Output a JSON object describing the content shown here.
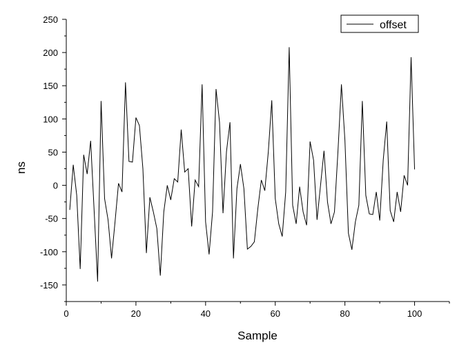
{
  "chart_data": {
    "type": "line",
    "title": "",
    "xlabel": "Sample",
    "ylabel": "ns",
    "xlim": [
      0,
      110
    ],
    "ylim": [
      -175,
      250
    ],
    "x_ticks": [
      0,
      20,
      40,
      60,
      80,
      100
    ],
    "y_ticks": [
      -150,
      -100,
      -50,
      0,
      50,
      100,
      150,
      200,
      250
    ],
    "x_tick_labels": [
      "0",
      "20",
      "40",
      "60",
      "80",
      "100"
    ],
    "y_tick_labels": [
      "-150",
      "-100",
      "-50",
      "0",
      "50",
      "100",
      "150",
      "200",
      "250"
    ],
    "grid": false,
    "legend_position": "top-right",
    "series": [
      {
        "name": "offset",
        "color": "#000000",
        "x": [
          1,
          2,
          3,
          4,
          5,
          6,
          7,
          8,
          9,
          10,
          11,
          12,
          13,
          14,
          15,
          16,
          17,
          18,
          19,
          20,
          21,
          22,
          23,
          24,
          25,
          26,
          27,
          28,
          29,
          30,
          31,
          32,
          33,
          34,
          35,
          36,
          37,
          38,
          39,
          40,
          41,
          42,
          43,
          44,
          45,
          46,
          47,
          48,
          49,
          50,
          51,
          52,
          53,
          54,
          55,
          56,
          57,
          58,
          59,
          60,
          61,
          62,
          63,
          64,
          65,
          66,
          67,
          68,
          69,
          70,
          71,
          72,
          73,
          74,
          75,
          76,
          77,
          78,
          79,
          80,
          81,
          82,
          83,
          84,
          85,
          86,
          87,
          88,
          89,
          90,
          91,
          92,
          93,
          94,
          95,
          96,
          97,
          98,
          99,
          100
        ],
        "values": [
          -37,
          31,
          -15,
          -126,
          46,
          17,
          67,
          -38,
          -145,
          127,
          -20,
          -52,
          -110,
          -55,
          3,
          -10,
          155,
          36,
          35,
          102,
          90,
          25,
          -102,
          -18,
          -40,
          -65,
          -136,
          -40,
          0,
          -22,
          10,
          5,
          84,
          20,
          25,
          -62,
          8,
          -2,
          152,
          -55,
          -104,
          -40,
          145,
          95,
          -42,
          51,
          95,
          -110,
          -5,
          32,
          -5,
          -96,
          -92,
          -85,
          -35,
          8,
          -8,
          50,
          128,
          -20,
          -58,
          -77,
          -10,
          208,
          -30,
          -58,
          -2,
          -40,
          -60,
          66,
          38,
          -52,
          0,
          52,
          -25,
          -58,
          -40,
          51,
          152,
          68,
          -72,
          -97,
          -55,
          -30,
          127,
          -15,
          -43,
          -44,
          -10,
          -53,
          38,
          96,
          -38,
          -55,
          -10,
          -40,
          15,
          0,
          193,
          24
        ]
      }
    ]
  }
}
